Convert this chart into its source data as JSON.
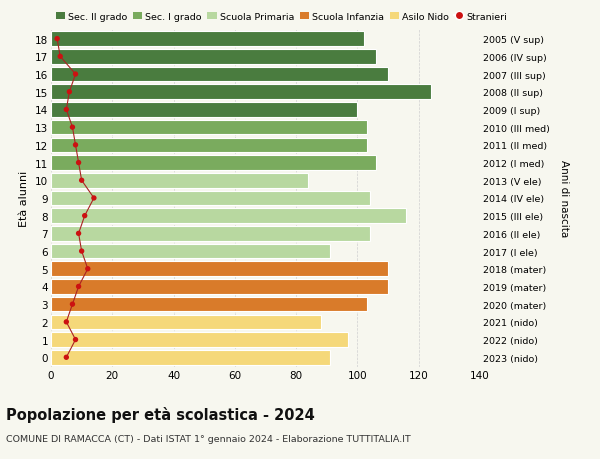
{
  "ages": [
    18,
    17,
    16,
    15,
    14,
    13,
    12,
    11,
    10,
    9,
    8,
    7,
    6,
    5,
    4,
    3,
    2,
    1,
    0
  ],
  "bar_values": [
    102,
    106,
    110,
    124,
    100,
    103,
    103,
    106,
    84,
    104,
    116,
    104,
    91,
    110,
    110,
    103,
    88,
    97,
    91
  ],
  "stranieri": [
    2,
    3,
    8,
    6,
    5,
    7,
    8,
    9,
    10,
    14,
    11,
    9,
    10,
    12,
    9,
    7,
    5,
    8,
    5
  ],
  "right_labels": [
    "2005 (V sup)",
    "2006 (IV sup)",
    "2007 (III sup)",
    "2008 (II sup)",
    "2009 (I sup)",
    "2010 (III med)",
    "2011 (II med)",
    "2012 (I med)",
    "2013 (V ele)",
    "2014 (IV ele)",
    "2015 (III ele)",
    "2016 (II ele)",
    "2017 (I ele)",
    "2018 (mater)",
    "2019 (mater)",
    "2020 (mater)",
    "2021 (nido)",
    "2022 (nido)",
    "2023 (nido)"
  ],
  "bar_colors": [
    "#4a7c3f",
    "#4a7c3f",
    "#4a7c3f",
    "#4a7c3f",
    "#4a7c3f",
    "#7aab5e",
    "#7aab5e",
    "#7aab5e",
    "#b8d8a0",
    "#b8d8a0",
    "#b8d8a0",
    "#b8d8a0",
    "#b8d8a0",
    "#d97b2a",
    "#d97b2a",
    "#d97b2a",
    "#f5d87a",
    "#f5d87a",
    "#f5d87a"
  ],
  "legend_colors": [
    "#4a7c3f",
    "#7aab5e",
    "#b8d8a0",
    "#d97b2a",
    "#f5d87a"
  ],
  "legend_labels": [
    "Sec. II grado",
    "Sec. I grado",
    "Scuola Primaria",
    "Scuola Infanzia",
    "Asilo Nido"
  ],
  "stranieri_color": "#cc1111",
  "stranieri_label": "Stranieri",
  "title": "Popolazione per età scolastica - 2024",
  "subtitle": "COMUNE DI RAMACCA (CT) - Dati ISTAT 1° gennaio 2024 - Elaborazione TUTTITALIA.IT",
  "ylabel_left": "Età alunni",
  "ylabel_right": "Anni di nascita",
  "xlim": [
    0,
    140
  ],
  "xticks": [
    0,
    20,
    40,
    60,
    80,
    100,
    120,
    140
  ],
  "background_color": "#f7f7ef",
  "grid_color": "#d0d0d0"
}
